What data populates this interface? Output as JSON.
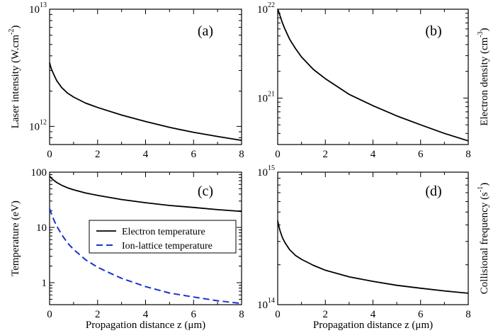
{
  "chart_data": [
    {
      "id": "a",
      "type": "line",
      "panel_label": "(a)",
      "xlabel": "",
      "ylabel": "Laser intensity (W.cm",
      "ylabel_sup": "-2",
      "ylabel_close": ")",
      "ylabel_side": "left",
      "xlim": [
        0,
        8
      ],
      "ylim": [
        700000000000.0,
        10000000000000.0
      ],
      "yscale": "log",
      "x_ticks": [
        "0",
        "2",
        "4",
        "6",
        "8"
      ],
      "y_ticks": [
        {
          "base": "10",
          "exp": "12",
          "value": 1000000000000.0
        },
        {
          "base": "10",
          "exp": "13",
          "value": 10000000000000.0
        }
      ],
      "grid": false,
      "series": [
        {
          "color": "#000000",
          "dash": "solid",
          "x": [
            0,
            0.05,
            0.1,
            0.2,
            0.3,
            0.5,
            0.75,
            1,
            1.5,
            2,
            3,
            4,
            5,
            6,
            7,
            8
          ],
          "y": [
            3500000000000.0,
            3200000000000.0,
            3000000000000.0,
            2700000000000.0,
            2450000000000.0,
            2150000000000.0,
            1920000000000.0,
            1780000000000.0,
            1580000000000.0,
            1450000000000.0,
            1250000000000.0,
            1100000000000.0,
            980000000000.0,
            890000000000.0,
            820000000000.0,
            760000000000.0
          ]
        }
      ]
    },
    {
      "id": "b",
      "type": "line",
      "panel_label": "(b)",
      "xlabel": "",
      "ylabel": "Electron density (cm",
      "ylabel_sup": "-3",
      "ylabel_close": ")",
      "ylabel_side": "right",
      "xlim": [
        0,
        8
      ],
      "ylim": [
        3e+20,
        1e+22
      ],
      "yscale": "log",
      "x_ticks": [
        "0",
        "2",
        "4",
        "6",
        "8"
      ],
      "y_ticks": [
        {
          "base": "10",
          "exp": "21",
          "value": 1e+21
        },
        {
          "base": "10",
          "exp": "22",
          "value": 1e+22
        }
      ],
      "grid": false,
      "series": [
        {
          "color": "#000000",
          "dash": "solid",
          "x": [
            0,
            0.05,
            0.1,
            0.2,
            0.3,
            0.5,
            0.75,
            1,
            1.5,
            2,
            3,
            4,
            5,
            6,
            7,
            8
          ],
          "y": [
            1e+22,
            9.2e+21,
            8.4e+21,
            7e+21,
            6e+21,
            4.6e+21,
            3.6e+21,
            2.9e+21,
            2.1e+21,
            1.65e+21,
            1.1e+21,
            8.2e+20,
            6.3e+20,
            5e+20,
            4e+20,
            3.3e+20
          ]
        }
      ]
    },
    {
      "id": "c",
      "type": "line",
      "panel_label": "(c)",
      "xlabel": "Propagation distance z (μm)",
      "ylabel": "Temperature (eV)",
      "ylabel_sup": "",
      "ylabel_close": "",
      "ylabel_side": "left",
      "xlim": [
        0,
        8
      ],
      "ylim": [
        0.4,
        100
      ],
      "yscale": "log",
      "x_ticks": [
        "0",
        "2",
        "4",
        "6",
        "8"
      ],
      "y_ticks": [
        {
          "base": "1",
          "exp": "",
          "value": 1
        },
        {
          "base": "10",
          "exp": "",
          "value": 10
        },
        {
          "base": "100",
          "exp": "",
          "value": 100
        }
      ],
      "grid": false,
      "legend": {
        "position": "center-right"
      },
      "series": [
        {
          "name": "Electron temperature",
          "color": "#000000",
          "dash": "solid",
          "x": [
            0,
            0.05,
            0.1,
            0.2,
            0.3,
            0.5,
            0.75,
            1,
            1.5,
            2,
            3,
            4,
            5,
            6,
            7,
            8
          ],
          "y": [
            85,
            80,
            76,
            70,
            65,
            58,
            52,
            48,
            42,
            38,
            32,
            28,
            25,
            23,
            21,
            19.5
          ]
        },
        {
          "name": "Ion-lattice temperature",
          "color": "#1a33cc",
          "dash": "dashed",
          "x": [
            0,
            0.05,
            0.1,
            0.2,
            0.3,
            0.5,
            0.75,
            1,
            1.5,
            2,
            2.5,
            3,
            4,
            5,
            6,
            7,
            8
          ],
          "y": [
            22,
            19,
            16.5,
            13,
            10.5,
            7.5,
            5.2,
            4.0,
            2.6,
            1.9,
            1.5,
            1.2,
            0.85,
            0.65,
            0.55,
            0.47,
            0.42
          ]
        }
      ]
    },
    {
      "id": "d",
      "type": "line",
      "panel_label": "(d)",
      "xlabel": "Propagation distance z (μm)",
      "ylabel": "Collisional frequency (s",
      "ylabel_sup": "-1",
      "ylabel_close": ")",
      "ylabel_side": "right",
      "xlim": [
        0,
        8
      ],
      "ylim": [
        100000000000000.0,
        1000000000000000.0
      ],
      "yscale": "log",
      "x_ticks": [
        "0",
        "2",
        "4",
        "6",
        "8"
      ],
      "y_ticks": [
        {
          "base": "10",
          "exp": "14",
          "value": 100000000000000.0
        },
        {
          "base": "10",
          "exp": "15",
          "value": 1000000000000000.0
        }
      ],
      "grid": false,
      "series": [
        {
          "color": "#000000",
          "dash": "solid",
          "x": [
            0,
            0.05,
            0.1,
            0.2,
            0.3,
            0.5,
            0.75,
            1,
            1.5,
            2,
            3,
            4,
            5,
            6,
            7,
            8
          ],
          "y": [
            430000000000000.0,
            390000000000000.0,
            360000000000000.0,
            320000000000000.0,
            295000000000000.0,
            260000000000000.0,
            235000000000000.0,
            220000000000000.0,
            198000000000000.0,
            182000000000000.0,
            162000000000000.0,
            150000000000000.0,
            140000000000000.0,
            133000000000000.0,
            127000000000000.0,
            122000000000000.0
          ]
        }
      ]
    }
  ]
}
